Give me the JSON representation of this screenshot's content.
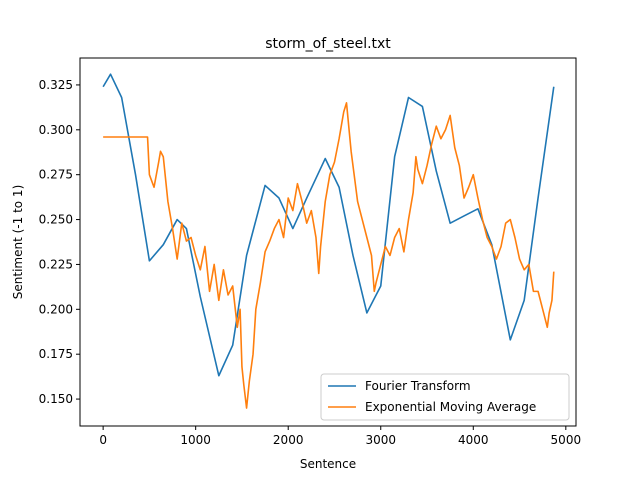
{
  "chart_data": {
    "type": "line",
    "title": "storm_of_steel.txt",
    "xlabel": "Sentence",
    "ylabel": "Sentiment (-1 to 1)",
    "xlim": [
      -250,
      5110
    ],
    "ylim": [
      0.135,
      0.34
    ],
    "xticks": [
      0,
      1000,
      2000,
      3000,
      4000,
      5000
    ],
    "xtick_labels": [
      "0",
      "1000",
      "2000",
      "3000",
      "4000",
      "5000"
    ],
    "yticks": [
      0.15,
      0.175,
      0.2,
      0.225,
      0.25,
      0.275,
      0.3,
      0.325
    ],
    "ytick_labels": [
      "0.150",
      "0.175",
      "0.200",
      "0.225",
      "0.250",
      "0.275",
      "0.300",
      "0.325"
    ],
    "grid": false,
    "legend_position": "lower right",
    "series": [
      {
        "name": "Fourier Transform",
        "color": "#1f77b4",
        "x": [
          0,
          80,
          200,
          350,
          500,
          650,
          800,
          900,
          1050,
          1250,
          1400,
          1550,
          1750,
          1900,
          2050,
          2200,
          2400,
          2550,
          2700,
          2850,
          3000,
          3150,
          3300,
          3450,
          3600,
          3750,
          3900,
          4050,
          4200,
          4400,
          4550,
          4700,
          4870
        ],
        "values": [
          0.324,
          0.331,
          0.318,
          0.275,
          0.227,
          0.236,
          0.25,
          0.245,
          0.207,
          0.163,
          0.18,
          0.23,
          0.269,
          0.262,
          0.245,
          0.262,
          0.284,
          0.268,
          0.23,
          0.198,
          0.213,
          0.285,
          0.318,
          0.313,
          0.277,
          0.248,
          0.252,
          0.256,
          0.236,
          0.183,
          0.205,
          0.262,
          0.324
        ]
      },
      {
        "name": "Exponential Moving Average",
        "color": "#ff7f0e",
        "x": [
          0,
          480,
          500,
          550,
          600,
          620,
          650,
          700,
          750,
          800,
          850,
          900,
          950,
          1000,
          1050,
          1100,
          1150,
          1200,
          1250,
          1300,
          1350,
          1400,
          1450,
          1480,
          1500,
          1520,
          1550,
          1580,
          1620,
          1650,
          1700,
          1750,
          1800,
          1850,
          1900,
          1950,
          2000,
          2050,
          2100,
          2150,
          2200,
          2250,
          2300,
          2330,
          2350,
          2400,
          2450,
          2500,
          2550,
          2600,
          2630,
          2680,
          2720,
          2750,
          2800,
          2850,
          2900,
          2930,
          2950,
          3000,
          3050,
          3100,
          3150,
          3200,
          3250,
          3300,
          3350,
          3380,
          3400,
          3450,
          3500,
          3550,
          3600,
          3650,
          3700,
          3750,
          3800,
          3850,
          3900,
          3950,
          4000,
          4050,
          4100,
          4150,
          4200,
          4250,
          4300,
          4350,
          4400,
          4450,
          4500,
          4550,
          4600,
          4650,
          4700,
          4750,
          4800,
          4820,
          4850,
          4870
        ],
        "values": [
          0.296,
          0.296,
          0.275,
          0.268,
          0.282,
          0.288,
          0.285,
          0.26,
          0.245,
          0.228,
          0.248,
          0.238,
          0.24,
          0.23,
          0.222,
          0.235,
          0.21,
          0.225,
          0.205,
          0.222,
          0.208,
          0.213,
          0.19,
          0.2,
          0.168,
          0.158,
          0.145,
          0.16,
          0.175,
          0.2,
          0.215,
          0.232,
          0.238,
          0.245,
          0.25,
          0.24,
          0.262,
          0.255,
          0.27,
          0.26,
          0.248,
          0.255,
          0.24,
          0.22,
          0.235,
          0.26,
          0.275,
          0.282,
          0.295,
          0.31,
          0.315,
          0.288,
          0.272,
          0.26,
          0.25,
          0.24,
          0.23,
          0.21,
          0.215,
          0.225,
          0.235,
          0.23,
          0.24,
          0.245,
          0.232,
          0.25,
          0.265,
          0.285,
          0.278,
          0.27,
          0.28,
          0.292,
          0.302,
          0.295,
          0.3,
          0.308,
          0.29,
          0.28,
          0.262,
          0.268,
          0.275,
          0.262,
          0.25,
          0.24,
          0.235,
          0.228,
          0.235,
          0.248,
          0.25,
          0.24,
          0.228,
          0.222,
          0.225,
          0.21,
          0.21,
          0.2,
          0.19,
          0.198,
          0.205,
          0.221
        ]
      }
    ]
  }
}
